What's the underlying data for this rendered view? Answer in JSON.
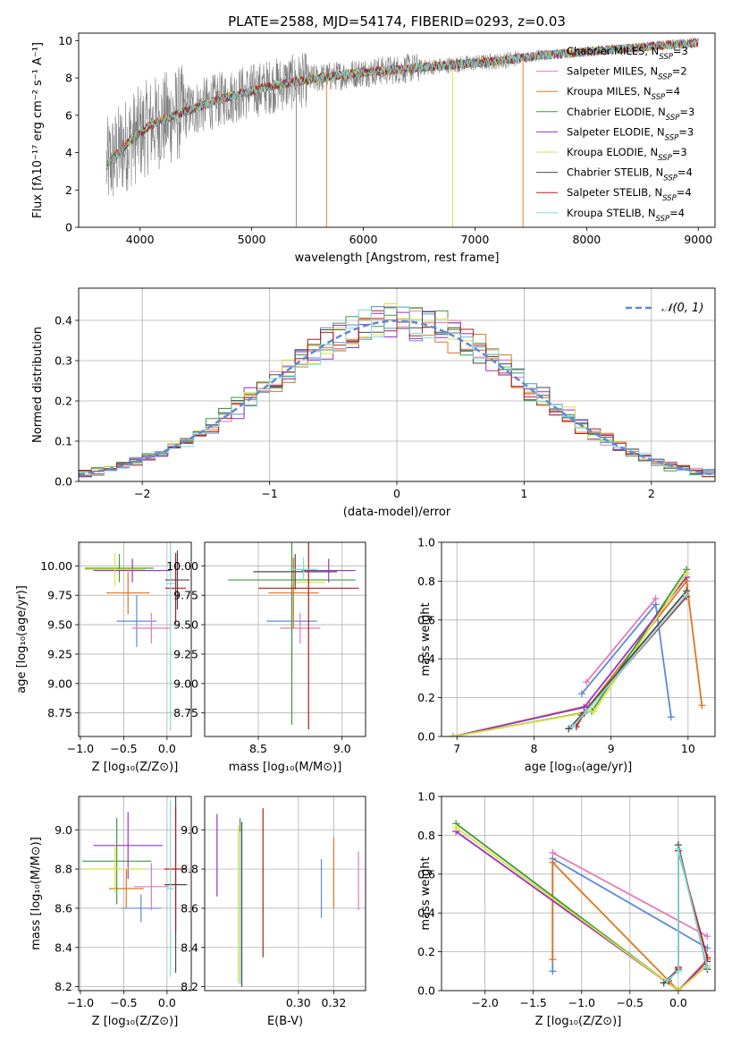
{
  "figure_title": "PLATE=2588, MJD=54174, FIBERID=0293, z=0.03",
  "models": [
    {
      "label": "Chabrier MILES",
      "nssp": "3",
      "color": "#5b8bd6"
    },
    {
      "label": "Salpeter MILES",
      "nssp": "2",
      "color": "#e779b8"
    },
    {
      "label": "Kroupa MILES",
      "nssp": "4",
      "color": "#e0761e"
    },
    {
      "label": "Chabrier ELODIE",
      "nssp": "3",
      "color": "#3f9a3f"
    },
    {
      "label": "Salpeter ELODIE",
      "nssp": "3",
      "color": "#9b2fc7"
    },
    {
      "label": "Kroupa ELODIE",
      "nssp": "3",
      "color": "#d8e33a"
    },
    {
      "label": "Chabrier STELIB",
      "nssp": "4",
      "color": "#4a4a4a"
    },
    {
      "label": "Salpeter STELIB",
      "nssp": "4",
      "color": "#b51c1c"
    },
    {
      "label": "Kroupa STELIB",
      "nssp": "4",
      "color": "#7fdad8"
    }
  ],
  "chart_data": [
    {
      "id": "spectrum",
      "type": "line",
      "xlabel": "wavelength [Angstrom, rest frame]",
      "ylabel": "Flux [fλ10⁻¹⁷ erg cm⁻² s⁻¹ A⁻¹]",
      "xlim": [
        3450,
        9150
      ],
      "ylim": [
        0,
        10.4
      ],
      "xticks": [
        4000,
        5000,
        6000,
        7000,
        8000,
        9000
      ],
      "yticks": [
        0,
        2,
        4,
        6,
        8,
        10
      ],
      "data_color": "#808080",
      "continuum": {
        "x": [
          3700,
          3900,
          4100,
          4400,
          4800,
          5200,
          5600,
          6000,
          6400,
          6800,
          7200,
          7600,
          8000,
          8400,
          8800,
          9000
        ],
        "y": [
          3.3,
          4.6,
          5.5,
          6.2,
          7.0,
          7.6,
          8.0,
          8.3,
          8.5,
          8.7,
          8.9,
          9.2,
          9.4,
          9.6,
          9.8,
          9.9
        ]
      }
    },
    {
      "id": "residual_hist",
      "type": "line",
      "xlabel": "(data-model)/error",
      "ylabel": "Normed distribution",
      "xlim": [
        -2.5,
        2.5
      ],
      "ylim": [
        0,
        0.48
      ],
      "xticks": [
        -2,
        -1,
        0,
        1,
        2
      ],
      "yticks": [
        0.0,
        0.1,
        0.2,
        0.3,
        0.4
      ],
      "legend_label": "𝒩(0, 1)",
      "legend_position": "top-right",
      "bin_width": 0.1
    },
    {
      "id": "age_vs_Z",
      "type": "scatter",
      "xlabel": "Z [log₁₀(Z/Z⊙)]",
      "ylabel": "age  [log₁₀(age/yr)]",
      "xlim": [
        -1.02,
        0.28
      ],
      "ylim": [
        8.55,
        10.2
      ],
      "xticks": [
        -1.0,
        -0.5,
        0.0
      ],
      "yticks": [
        8.75,
        9.0,
        9.25,
        9.5,
        9.75,
        10.0
      ],
      "points": [
        {
          "x": -0.35,
          "y": 9.53,
          "xerr": 0.23,
          "yerr": 0.22
        },
        {
          "x": -0.18,
          "y": 9.47,
          "xerr": 0.22,
          "yerr": 0.13
        },
        {
          "x": -0.45,
          "y": 9.77,
          "xerr": 0.25,
          "yerr": 0.18
        },
        {
          "x": -0.55,
          "y": 9.98,
          "xerr": 0.4,
          "yerr": 0.12
        },
        {
          "x": -0.4,
          "y": 9.96,
          "xerr": 0.45,
          "yerr": 0.1
        },
        {
          "x": -0.6,
          "y": 9.97,
          "xerr": 0.35,
          "yerr": 0.14
        },
        {
          "x": 0.12,
          "y": 9.88,
          "xerr": 0.14,
          "yerr": 0.25
        },
        {
          "x": 0.1,
          "y": 9.81,
          "xerr": 0.12,
          "yerr": 0.3
        },
        {
          "x": 0.04,
          "y": 9.85,
          "xerr": 0.05,
          "yerr": 1.25
        }
      ]
    },
    {
      "id": "age_vs_mass",
      "type": "scatter",
      "xlabel": "mass [log₁₀(M/M⊙)]",
      "xlim": [
        8.18,
        9.14
      ],
      "ylim": [
        8.55,
        10.2
      ],
      "xticks": [
        8.5,
        9.0
      ],
      "yticks": [
        8.75,
        9.0,
        9.25,
        9.5,
        9.75,
        10.0
      ],
      "points": [
        {
          "x": 8.7,
          "y": 9.53,
          "xerr": 0.15,
          "yerr": 0.45
        },
        {
          "x": 8.75,
          "y": 9.47,
          "xerr": 0.12,
          "yerr": 0.13
        },
        {
          "x": 8.71,
          "y": 9.77,
          "xerr": 0.15,
          "yerr": 0.3
        },
        {
          "x": 8.7,
          "y": 9.88,
          "xerr": 0.38,
          "yerr": 1.23
        },
        {
          "x": 8.92,
          "y": 9.96,
          "xerr": 0.16,
          "yerr": 0.1
        },
        {
          "x": 8.8,
          "y": 9.86,
          "xerr": 0.1,
          "yerr": 0.12
        },
        {
          "x": 8.72,
          "y": 9.95,
          "xerr": 0.25,
          "yerr": 0.15
        },
        {
          "x": 8.8,
          "y": 9.81,
          "xerr": 0.3,
          "yerr": 1.2
        },
        {
          "x": 8.77,
          "y": 9.97,
          "xerr": 0.08,
          "yerr": 0.1
        }
      ]
    },
    {
      "id": "weight_vs_age",
      "type": "line",
      "xlabel": "age  [log₁₀(age/yr)]",
      "ylabel": "mass weight",
      "xlim": [
        6.8,
        10.35
      ],
      "ylim": [
        0,
        1.0
      ],
      "xticks": [
        7,
        8,
        9,
        10
      ],
      "yticks": [
        0.0,
        0.2,
        0.4,
        0.6,
        0.8,
        1.0
      ],
      "series": [
        {
          "x": [
            8.62,
            9.58,
            9.78
          ],
          "y": [
            0.22,
            0.68,
            0.1
          ]
        },
        {
          "x": [
            8.68,
            9.58
          ],
          "y": [
            0.28,
            0.71
          ]
        },
        {
          "x": [
            6.95,
            8.72,
            9.98,
            10.18
          ],
          "y": [
            0.0,
            0.16,
            0.8,
            0.16
          ]
        },
        {
          "x": [
            6.95,
            8.75,
            9.98
          ],
          "y": [
            0.0,
            0.13,
            0.86
          ]
        },
        {
          "x": [
            6.95,
            8.65,
            9.98
          ],
          "y": [
            0.0,
            0.15,
            0.82
          ]
        },
        {
          "x": [
            6.95,
            8.78,
            9.98
          ],
          "y": [
            0.0,
            0.13,
            0.84
          ]
        },
        {
          "x": [
            8.45,
            8.62,
            9.98
          ],
          "y": [
            0.04,
            0.11,
            0.75
          ]
        },
        {
          "x": [
            8.55,
            8.65,
            9.98
          ],
          "y": [
            0.05,
            0.12,
            0.72
          ]
        },
        {
          "x": [
            8.5,
            8.68,
            9.98
          ],
          "y": [
            0.05,
            0.13,
            0.73
          ]
        }
      ]
    },
    {
      "id": "mass_vs_Z",
      "type": "scatter",
      "xlabel": "Z [log₁₀(Z/Z⊙)]",
      "ylabel": "mass [log₁₀(M/M⊙)]",
      "xlim": [
        -1.02,
        0.28
      ],
      "ylim": [
        8.18,
        9.17
      ],
      "xticks": [
        -1.0,
        -0.5,
        0.0
      ],
      "yticks": [
        8.2,
        8.4,
        8.6,
        8.8,
        9.0
      ],
      "points": [
        {
          "x": -0.3,
          "y": 8.6,
          "xerr": 0.23,
          "yerr": 0.07
        },
        {
          "x": -0.18,
          "y": 8.71,
          "xerr": 0.2,
          "yerr": 0.12
        },
        {
          "x": -0.47,
          "y": 8.7,
          "xerr": 0.2,
          "yerr": 0.1
        },
        {
          "x": -0.58,
          "y": 8.84,
          "xerr": 0.4,
          "yerr": 0.22
        },
        {
          "x": -0.45,
          "y": 8.92,
          "xerr": 0.4,
          "yerr": 0.17
        },
        {
          "x": -0.6,
          "y": 8.8,
          "xerr": 0.35,
          "yerr": 0.12
        },
        {
          "x": 0.1,
          "y": 8.72,
          "xerr": 0.13,
          "yerr": 0.45
        },
        {
          "x": 0.1,
          "y": 8.8,
          "xerr": 0.13,
          "yerr": 0.32
        },
        {
          "x": 0.04,
          "y": 8.7,
          "xerr": 0.04,
          "yerr": 0.45
        }
      ]
    },
    {
      "id": "mass_vs_ebv",
      "type": "scatter",
      "xlabel": "E(B-V)",
      "xlim": [
        0.247,
        0.338
      ],
      "ylim": [
        8.18,
        9.17
      ],
      "xticks": [
        0.3,
        0.32
      ],
      "yticks": [
        8.2,
        8.4,
        8.6,
        8.8,
        9.0
      ],
      "points": [
        {
          "x": 0.313,
          "y": 8.7,
          "xerr": 0,
          "yerr": 0.15
        },
        {
          "x": 0.334,
          "y": 8.74,
          "xerr": 0,
          "yerr": 0.15
        },
        {
          "x": 0.32,
          "y": 8.78,
          "xerr": 0,
          "yerr": 0.18
        },
        {
          "x": 0.267,
          "y": 8.64,
          "xerr": 0,
          "yerr": 0.42
        },
        {
          "x": 0.254,
          "y": 8.87,
          "xerr": 0,
          "yerr": 0.21
        },
        {
          "x": 0.266,
          "y": 8.62,
          "xerr": 0,
          "yerr": 0.4
        },
        {
          "x": 0.268,
          "y": 8.62,
          "xerr": 0,
          "yerr": 0.42
        },
        {
          "x": 0.28,
          "y": 8.73,
          "xerr": 0,
          "yerr": 0.38
        },
        {
          "x": 0.267,
          "y": 8.6,
          "xerr": 0,
          "yerr": 0.39
        }
      ]
    },
    {
      "id": "weight_vs_Z",
      "type": "line",
      "xlabel": "Z [log₁₀(Z/Z⊙)]",
      "ylabel": "mass weight",
      "xlim": [
        -2.45,
        0.38
      ],
      "ylim": [
        0,
        1.0
      ],
      "xticks": [
        -2.0,
        -1.5,
        -1.0,
        -0.5,
        0.0
      ],
      "yticks": [
        0.0,
        0.2,
        0.4,
        0.6,
        0.8,
        1.0
      ],
      "series": [
        {
          "x": [
            -1.3,
            -1.3,
            0.3
          ],
          "y": [
            0.1,
            0.68,
            0.22
          ]
        },
        {
          "x": [
            -1.3,
            0.3
          ],
          "y": [
            0.71,
            0.28
          ]
        },
        {
          "x": [
            -1.3,
            -1.3,
            0.0,
            0.3
          ],
          "y": [
            0.16,
            0.66,
            0.0,
            0.16
          ]
        },
        {
          "x": [
            -2.3,
            0.0,
            0.3
          ],
          "y": [
            0.86,
            0.0,
            0.13
          ]
        },
        {
          "x": [
            -2.3,
            0.0,
            0.3
          ],
          "y": [
            0.82,
            0.0,
            0.15
          ]
        },
        {
          "x": [
            -2.3,
            0.0,
            0.3
          ],
          "y": [
            0.84,
            0.0,
            0.13
          ]
        },
        {
          "x": [
            -0.15,
            0.0,
            0.0,
            0.3
          ],
          "y": [
            0.04,
            0.11,
            0.75,
            0.11
          ]
        },
        {
          "x": [
            -0.1,
            0.0,
            0.0,
            0.3
          ],
          "y": [
            0.05,
            0.12,
            0.72,
            0.17
          ]
        },
        {
          "x": [
            -0.12,
            0.0,
            0.0,
            0.3
          ],
          "y": [
            0.05,
            0.1,
            0.73,
            0.12
          ]
        }
      ]
    }
  ]
}
